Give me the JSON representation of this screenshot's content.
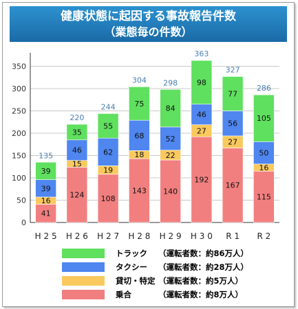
{
  "title_line1": "健康状態に起因する事故報告件数",
  "title_line2": "（業態毎の件数）",
  "colors": {
    "truck": "#5fe05f",
    "taxi": "#4f86ef",
    "rental": "#f9c95e",
    "bus": "#f27f7f",
    "total_text": "#4a7fb3"
  },
  "chart_data": {
    "type": "bar",
    "stacked": true,
    "title": "健康状態に起因する事故報告件数（業態毎の件数）",
    "categories": [
      "H25",
      "H26",
      "H27",
      "H28",
      "H29",
      "H30",
      "R1",
      "R2"
    ],
    "category_labels": [
      "H 2 5",
      "H 2 6",
      "H 2 7",
      "H 2 8",
      "H 2 9",
      "H 3 0",
      "R 1",
      "R 2"
    ],
    "series": [
      {
        "name": "乗合",
        "key": "bus",
        "values": [
          41,
          124,
          108,
          143,
          140,
          192,
          167,
          115
        ]
      },
      {
        "name": "貸切・特定",
        "key": "rental",
        "values": [
          16,
          15,
          19,
          18,
          22,
          27,
          27,
          16
        ]
      },
      {
        "name": "タクシー",
        "key": "taxi",
        "values": [
          39,
          46,
          62,
          68,
          52,
          46,
          56,
          50
        ]
      },
      {
        "name": "トラック",
        "key": "truck",
        "values": [
          39,
          35,
          55,
          75,
          84,
          98,
          77,
          105
        ]
      }
    ],
    "totals": [
      135,
      220,
      244,
      304,
      298,
      363,
      327,
      286
    ],
    "ylim": [
      0,
      380
    ],
    "yticks": [
      0,
      50,
      100,
      150,
      200,
      250,
      300,
      350
    ],
    "grid": true,
    "legend_position": "bottom"
  },
  "legend": [
    {
      "key": "truck",
      "name": "トラック",
      "note": "（運転者数：約86万人）"
    },
    {
      "key": "taxi",
      "name": "タクシー",
      "note": "（運転者数：約28万人）"
    },
    {
      "key": "rental",
      "name": "貸切・特定",
      "note": "（運転者数：約5万人）"
    },
    {
      "key": "bus",
      "name": "乗合",
      "note": "（運転者数：約8万人）"
    }
  ]
}
